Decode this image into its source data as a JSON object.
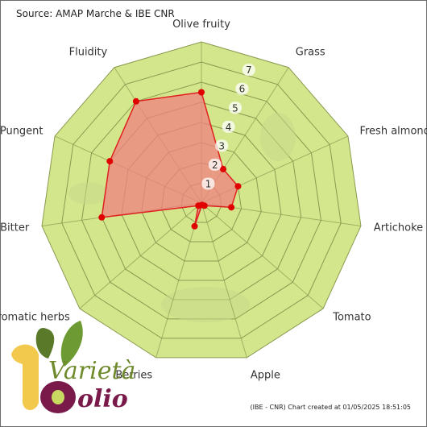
{
  "source": "Source: AMAP Marche & IBE CNR",
  "credit": "(IBE - CNR) Chart created at 01/05/2025 18:51:05",
  "logo": {
    "line1": "Varietà",
    "line2": "olio"
  },
  "colors": {
    "ring_fill": "#d4e68c",
    "ring_stroke": "#8a9a50",
    "series_fill": "#f08080",
    "series_stroke": "#e02020",
    "point": "#e00000"
  },
  "chart_data": {
    "type": "radar",
    "axes": [
      "Olive fruity",
      "Grass",
      "Fresh almond",
      "Artichoke",
      "Tomato",
      "Apple",
      "Berries",
      "Aromatic herbs",
      "Bitter",
      "Pungent",
      "Fluidity"
    ],
    "ticks": [
      "1",
      "2",
      "3",
      "4",
      "5",
      "6",
      "7"
    ],
    "rmax": 8,
    "series": [
      {
        "values": [
          5.5,
          2,
          2,
          1.5,
          0.2,
          0.1,
          1.2,
          0.2,
          5,
          5,
          6
        ]
      }
    ]
  }
}
